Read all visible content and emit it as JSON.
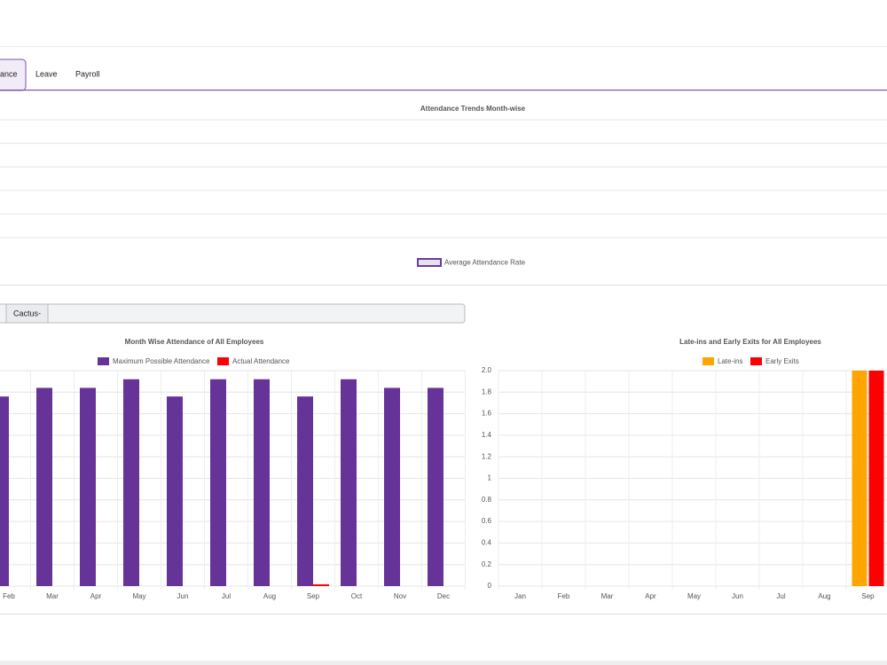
{
  "tabs": [
    "ance",
    "Leave",
    "Payroll"
  ],
  "filter": {
    "label": "Cactus-"
  },
  "chart_data": [
    {
      "type": "line",
      "title": "Attendance Trends Month-wise",
      "series": [
        {
          "name": "Average Attendance Rate",
          "color": "#6a3d9a",
          "values": []
        }
      ]
    },
    {
      "type": "bar",
      "title": "Month Wise Attendance of All Employees",
      "categories": [
        "Feb",
        "Mar",
        "Apr",
        "May",
        "Jun",
        "Jul",
        "Aug",
        "Sep",
        "Oct",
        "Nov",
        "Dec"
      ],
      "series": [
        {
          "name": "Maximum Possible Attendance",
          "color": "#663399",
          "values": [
            22,
            23,
            23,
            24,
            22,
            24,
            24,
            22,
            24,
            23,
            23
          ]
        },
        {
          "name": "Actual Attendance",
          "color": "#ff0000",
          "values": [
            0,
            0,
            0,
            0,
            0,
            0,
            0,
            0.2,
            0,
            0,
            0
          ]
        }
      ],
      "ylim": [
        0,
        25
      ]
    },
    {
      "type": "bar",
      "title": "Late-ins and Early Exits for All Employees",
      "categories": [
        "Jan",
        "Feb",
        "Mar",
        "Apr",
        "May",
        "Jun",
        "Jul",
        "Aug",
        "Sep"
      ],
      "series": [
        {
          "name": "Late-ins",
          "color": "#ffa500",
          "values": [
            0,
            0,
            0,
            0,
            0,
            0,
            0,
            0,
            2
          ]
        },
        {
          "name": "Early Exits",
          "color": "#ff0000",
          "values": [
            0,
            0,
            0,
            0,
            0,
            0,
            0,
            0,
            2
          ]
        }
      ],
      "ylim": [
        0,
        2
      ],
      "yticks": [
        0,
        0.2,
        0.4,
        0.6,
        0.8,
        1,
        1.2,
        1.4,
        1.6,
        1.8,
        {
          "value": 2,
          "label": "2.0"
        }
      ],
      "grid": true
    }
  ]
}
